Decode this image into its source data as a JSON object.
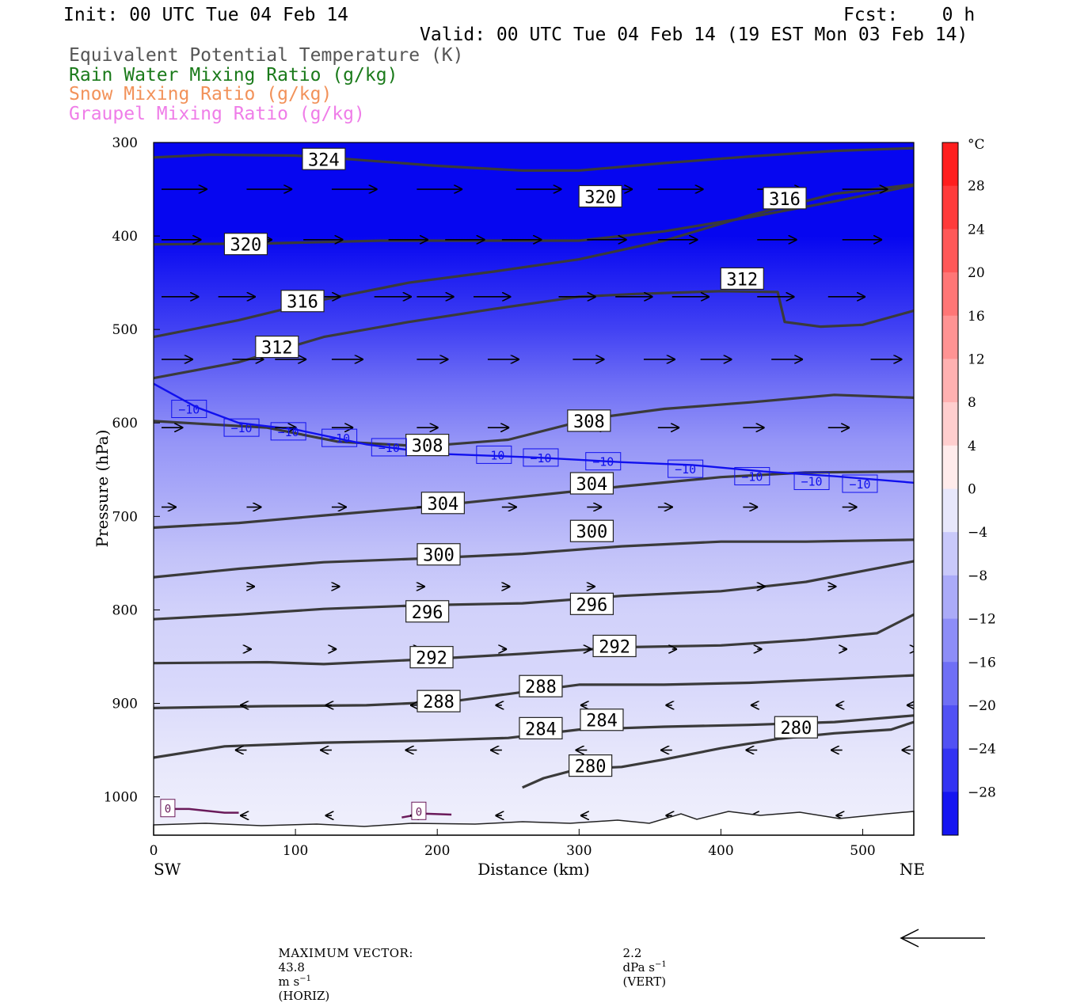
{
  "header": {
    "init": "Init: 00 UTC Tue 04 Feb 14",
    "fcst": "Fcst:    0 h",
    "valid": "Valid: 00 UTC Tue 04 Feb 14 (19 EST Mon 03 Feb 14)",
    "fields": [
      {
        "text": "Equivalent Potential Temperature (K)",
        "color": "#555555"
      },
      {
        "text": "Rain Water Mixing Ratio (g/kg)",
        "color": "#1a7a1a"
      },
      {
        "text": "Snow Mixing Ratio (g/kg)",
        "color": "#f2925a"
      },
      {
        "text": "Graupel Mixing Ratio (g/kg)",
        "color": "#ef7de8"
      }
    ]
  },
  "colors": {
    "theta_contour": "#3a3a3a",
    "minus10_contour": "#1010ee",
    "zero_contour": "#6a1a5a"
  },
  "chart_data": {
    "type": "cross-section contour",
    "xlabel": "Distance (km)",
    "ylabel": "Pressure (hPa)",
    "xlim": [
      0,
      536
    ],
    "ylim": [
      1030,
      300
    ],
    "x_ticks": [
      0,
      100,
      200,
      300,
      400,
      500
    ],
    "y_ticks": [
      300,
      400,
      500,
      600,
      700,
      800,
      900,
      1000
    ],
    "x_end_labels": [
      "SW",
      "NE"
    ],
    "colorbar": {
      "unit": "°C",
      "labels": [
        "28",
        "24",
        "20",
        "16",
        "12",
        "8",
        "4",
        "0",
        "−4",
        "−8",
        "−12",
        "−16",
        "−20",
        "−24",
        "−28"
      ]
    },
    "temperature_shading_profile": [
      {
        "p": 300,
        "t": -34
      },
      {
        "p": 400,
        "t": -32
      },
      {
        "p": 450,
        "t": -28
      },
      {
        "p": 500,
        "t": -24
      },
      {
        "p": 560,
        "t": -18
      },
      {
        "p": 620,
        "t": -13
      },
      {
        "p": 680,
        "t": -10
      },
      {
        "p": 740,
        "t": -7
      },
      {
        "p": 800,
        "t": -5
      },
      {
        "p": 880,
        "t": -4
      },
      {
        "p": 960,
        "t": -2
      },
      {
        "p": 1030,
        "t": -1
      }
    ],
    "theta_e_contours": [
      {
        "value": "324",
        "points": [
          [
            0,
            316
          ],
          [
            40,
            313
          ],
          [
            100,
            314
          ],
          [
            140,
            318
          ],
          [
            200,
            325
          ],
          [
            260,
            330
          ],
          [
            300,
            330
          ],
          [
            360,
            322
          ],
          [
            420,
            315
          ],
          [
            480,
            309
          ],
          [
            536,
            306
          ]
        ],
        "labels": [
          [
            120,
            318
          ]
        ]
      },
      {
        "value": "320",
        "points": [
          [
            0,
            409
          ],
          [
            80,
            408
          ],
          [
            160,
            405
          ],
          [
            240,
            405
          ],
          [
            300,
            405
          ],
          [
            360,
            395
          ],
          [
            420,
            380
          ],
          [
            480,
            363
          ],
          [
            536,
            346
          ]
        ],
        "labels": [
          [
            65,
            409
          ],
          [
            315,
            358
          ]
        ]
      },
      {
        "value": "316",
        "points": [
          [
            0,
            508
          ],
          [
            60,
            490
          ],
          [
            120,
            468
          ],
          [
            180,
            450
          ],
          [
            240,
            438
          ],
          [
            300,
            425
          ],
          [
            360,
            405
          ],
          [
            420,
            378
          ],
          [
            480,
            355
          ],
          [
            536,
            345
          ]
        ],
        "labels": [
          [
            105,
            470
          ],
          [
            445,
            360
          ]
        ]
      },
      {
        "value": "312",
        "points": [
          [
            0,
            552
          ],
          [
            60,
            535
          ],
          [
            120,
            508
          ],
          [
            180,
            492
          ],
          [
            240,
            478
          ],
          [
            300,
            465
          ],
          [
            340,
            462
          ],
          [
            400,
            459
          ],
          [
            440,
            460
          ],
          [
            445,
            492
          ],
          [
            470,
            497
          ],
          [
            500,
            495
          ],
          [
            536,
            480
          ]
        ],
        "labels": [
          [
            87,
            519
          ],
          [
            415,
            446
          ]
        ]
      },
      {
        "value": "308",
        "points": [
          [
            0,
            598
          ],
          [
            80,
            605
          ],
          [
            130,
            620
          ],
          [
            190,
            625
          ],
          [
            250,
            618
          ],
          [
            310,
            595
          ],
          [
            360,
            585
          ],
          [
            420,
            578
          ],
          [
            480,
            570
          ],
          [
            536,
            573
          ]
        ],
        "labels": [
          [
            193,
            624
          ],
          [
            307,
            598
          ]
        ]
      },
      {
        "value": "304",
        "points": [
          [
            0,
            712
          ],
          [
            60,
            707
          ],
          [
            120,
            699
          ],
          [
            190,
            690
          ],
          [
            260,
            679
          ],
          [
            330,
            668
          ],
          [
            400,
            658
          ],
          [
            460,
            653
          ],
          [
            536,
            652
          ]
        ],
        "labels": [
          [
            204,
            686
          ],
          [
            309,
            665
          ]
        ]
      },
      {
        "value": "300",
        "points": [
          [
            0,
            765
          ],
          [
            60,
            756
          ],
          [
            120,
            749
          ],
          [
            190,
            745
          ],
          [
            260,
            740
          ],
          [
            330,
            732
          ],
          [
            400,
            727
          ],
          [
            460,
            727
          ],
          [
            536,
            725
          ]
        ],
        "labels": [
          [
            201,
            741
          ],
          [
            309,
            716
          ]
        ]
      },
      {
        "value": "296",
        "points": [
          [
            0,
            810
          ],
          [
            60,
            805
          ],
          [
            120,
            799
          ],
          [
            190,
            795
          ],
          [
            260,
            793
          ],
          [
            330,
            785
          ],
          [
            400,
            780
          ],
          [
            460,
            770
          ],
          [
            536,
            748
          ]
        ],
        "labels": [
          [
            193,
            802
          ],
          [
            309,
            794
          ]
        ]
      },
      {
        "value": "292",
        "points": [
          [
            0,
            857
          ],
          [
            80,
            856
          ],
          [
            120,
            858
          ],
          [
            190,
            853
          ],
          [
            260,
            847
          ],
          [
            330,
            840
          ],
          [
            400,
            838
          ],
          [
            460,
            832
          ],
          [
            510,
            825
          ],
          [
            536,
            805
          ]
        ],
        "labels": [
          [
            196,
            851
          ],
          [
            325,
            839
          ]
        ]
      },
      {
        "value": "288",
        "points": [
          [
            0,
            905
          ],
          [
            80,
            903
          ],
          [
            150,
            902
          ],
          [
            210,
            898
          ],
          [
            260,
            888
          ],
          [
            300,
            880
          ],
          [
            360,
            880
          ],
          [
            420,
            878
          ],
          [
            480,
            874
          ],
          [
            536,
            870
          ]
        ],
        "labels": [
          [
            201,
            898
          ],
          [
            273,
            882
          ]
        ]
      },
      {
        "value": "284",
        "points": [
          [
            0,
            958
          ],
          [
            50,
            946
          ],
          [
            120,
            942
          ],
          [
            190,
            940
          ],
          [
            250,
            937
          ],
          [
            300,
            928
          ],
          [
            360,
            925
          ],
          [
            420,
            923
          ],
          [
            480,
            920
          ],
          [
            536,
            913
          ]
        ],
        "labels": [
          [
            273,
            927
          ],
          [
            316,
            918
          ]
        ]
      },
      {
        "value": "280",
        "points": [
          [
            260,
            990
          ],
          [
            275,
            980
          ],
          [
            300,
            970
          ],
          [
            330,
            968
          ],
          [
            360,
            960
          ],
          [
            400,
            948
          ],
          [
            440,
            938
          ],
          [
            480,
            932
          ],
          [
            520,
            928
          ],
          [
            536,
            920
          ]
        ],
        "labels": [
          [
            308,
            967
          ],
          [
            453,
            926
          ]
        ]
      }
    ],
    "minus10_contour": {
      "value": "-10",
      "points": [
        [
          0,
          558
        ],
        [
          30,
          583
        ],
        [
          60,
          600
        ],
        [
          100,
          607
        ],
        [
          150,
          623
        ],
        [
          200,
          633
        ],
        [
          270,
          637
        ],
        [
          330,
          642
        ],
        [
          380,
          645
        ],
        [
          430,
          652
        ],
        [
          480,
          657
        ],
        [
          536,
          664
        ]
      ],
      "labels": [
        [
          25,
          585
        ],
        [
          62,
          605
        ],
        [
          95,
          609
        ],
        [
          131,
          616
        ],
        [
          166,
          626
        ],
        [
          240,
          634
        ],
        [
          273,
          637
        ],
        [
          317,
          641
        ],
        [
          375,
          649
        ],
        [
          422,
          657
        ],
        [
          464,
          662
        ],
        [
          498,
          665
        ]
      ]
    },
    "zero_contour_segments": [
      {
        "value": "0",
        "points": [
          [
            5,
            1013
          ],
          [
            25,
            1013
          ],
          [
            50,
            1017
          ],
          [
            60,
            1017
          ]
        ],
        "label": [
          10,
          1012
        ]
      },
      {
        "value": "0",
        "points": [
          [
            175,
            1022
          ],
          [
            190,
            1018
          ],
          [
            210,
            1019
          ]
        ],
        "label": [
          187,
          1015
        ]
      }
    ],
    "wind_arrows_m_s": [
      {
        "p": 350,
        "x": [
          0,
          60,
          120,
          180,
          250,
          300,
          350,
          420,
          480
        ],
        "len": 55
      },
      {
        "p": 404,
        "x": [
          0,
          50,
          100,
          160,
          200,
          240,
          300,
          350,
          420,
          480
        ],
        "len": 48
      },
      {
        "p": 465,
        "x": [
          0,
          40,
          100,
          150,
          180,
          220,
          280,
          320,
          360,
          420,
          470
        ],
        "len": 45
      },
      {
        "p": 532,
        "x": [
          0,
          50,
          80,
          120,
          180,
          230,
          290,
          340,
          380,
          430,
          500
        ],
        "len": 38
      },
      {
        "p": 605,
        "x": [
          0,
          80,
          120,
          180,
          230,
          300,
          350,
          410,
          470,
          540
        ],
        "len": 26
      },
      {
        "p": 690,
        "x": [
          0,
          60,
          120,
          180,
          240,
          300,
          350,
          410,
          480
        ],
        "len": 18
      },
      {
        "p": 775,
        "x": [
          60,
          120,
          180,
          240,
          300,
          420,
          470
        ],
        "len": 10
      },
      {
        "p": 842,
        "x": [
          60,
          120,
          180,
          240,
          300,
          360,
          420,
          480,
          530
        ],
        "len": 6
      },
      {
        "p": 902,
        "x": [
          60,
          120,
          180,
          240,
          300,
          360,
          420,
          480,
          530
        ],
        "len": -8
      },
      {
        "p": 950,
        "x": [
          60,
          120,
          180,
          240,
          300,
          360,
          420,
          480,
          530
        ],
        "len": -14
      },
      {
        "p": 1020,
        "x": [
          60,
          120,
          180,
          240,
          300,
          360,
          420,
          480,
          530
        ],
        "len": -8
      }
    ],
    "maximum_vector": {
      "prefix": "MAXIMUM VECTOR:",
      "horiz_value": "43.8",
      "horiz_units": "m s",
      "horiz_tag": "(HORIZ)",
      "vert_value": "2.2",
      "vert_units": "dPa s",
      "vert_tag": "(VERT)",
      "exponent": "−1"
    }
  }
}
